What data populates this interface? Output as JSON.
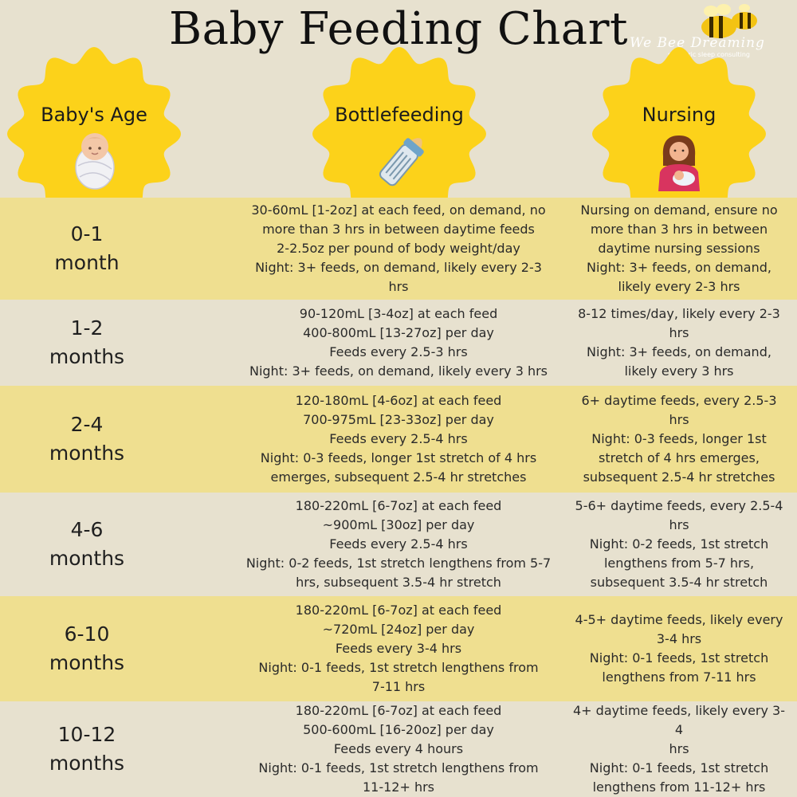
{
  "title": "Baby Feeding Chart",
  "logo": {
    "brand": "We Bee Dreaming",
    "tagline": "pediatric sleep consulting"
  },
  "colors": {
    "background": "#e7e1cf",
    "row_shade": "#efdf90",
    "badge": "#fcd21a"
  },
  "columns": [
    {
      "label": "Baby's Age",
      "icon": "swaddled-baby-icon"
    },
    {
      "label": "Bottlefeeding",
      "icon": "baby-bottle-icon"
    },
    {
      "label": "Nursing",
      "icon": "nursing-mother-icon"
    }
  ],
  "rows": [
    {
      "age": [
        "0-1",
        "month"
      ],
      "bottle": [
        "30-60mL [1-2oz] at each feed, on demand, no",
        "more than 3 hrs in between daytime feeds",
        "2-2.5oz per pound of body weight/day",
        "Night: 3+ feeds, on demand, likely every 2-3",
        "hrs"
      ],
      "nursing": [
        "Nursing on demand, ensure no",
        "more than 3 hrs in between",
        "daytime nursing sessions",
        "Night: 3+ feeds, on demand,",
        "likely every 2-3 hrs"
      ]
    },
    {
      "age": [
        "1-2",
        "months"
      ],
      "bottle": [
        "90-120mL [3-4oz] at each feed",
        "400-800mL [13-27oz] per day",
        "Feeds every 2.5-3 hrs",
        "Night: 3+ feeds, on demand, likely every 3 hrs"
      ],
      "nursing": [
        "8-12 times/day, likely every 2-3",
        "hrs",
        "Night: 3+ feeds, on demand,",
        "likely every 3 hrs"
      ]
    },
    {
      "age": [
        "2-4",
        "months"
      ],
      "bottle": [
        "120-180mL [4-6oz] at each feed",
        "700-975mL [23-33oz] per day",
        "Feeds every 2.5-4 hrs",
        "Night: 0-3 feeds, longer 1st stretch of 4 hrs",
        "emerges, subsequent 2.5-4 hr stretches"
      ],
      "nursing": [
        "6+ daytime feeds, every 2.5-3 hrs",
        "Night: 0-3 feeds, longer 1st",
        "stretch of 4 hrs emerges,",
        "subsequent 2.5-4 hr stretches"
      ]
    },
    {
      "age": [
        "4-6",
        "months"
      ],
      "bottle": [
        "180-220mL [6-7oz] at each feed",
        "~900mL [30oz] per day",
        "Feeds every 2.5-4 hrs",
        "Night: 0-2 feeds, 1st stretch lengthens from 5-7",
        "hrs, subsequent 3.5-4 hr stretch"
      ],
      "nursing": [
        "5-6+ daytime feeds, every 2.5-4",
        "hrs",
        "Night: 0-2 feeds, 1st stretch",
        "lengthens from 5-7 hrs,",
        "subsequent 3.5-4 hr stretch"
      ]
    },
    {
      "age": [
        "6-10",
        "months"
      ],
      "bottle": [
        "180-220mL [6-7oz] at each feed",
        "~720mL [24oz] per day",
        "Feeds every 3-4 hrs",
        "Night: 0-1 feeds, 1st stretch lengthens from",
        "7-11 hrs"
      ],
      "nursing": [
        "4-5+ daytime feeds, likely every",
        "3-4 hrs",
        "Night: 0-1 feeds, 1st stretch",
        "lengthens from 7-11 hrs"
      ]
    },
    {
      "age": [
        "10-12",
        "months"
      ],
      "bottle": [
        "180-220mL [6-7oz] at each feed",
        "500-600mL [16-20oz] per day",
        "Feeds every 4 hours",
        "Night: 0-1 feeds, 1st stretch lengthens from",
        "11-12+ hrs"
      ],
      "nursing": [
        "4+ daytime feeds, likely every 3-4",
        "hrs",
        "Night: 0-1 feeds, 1st stretch",
        "lengthens from 11-12+ hrs"
      ]
    }
  ]
}
